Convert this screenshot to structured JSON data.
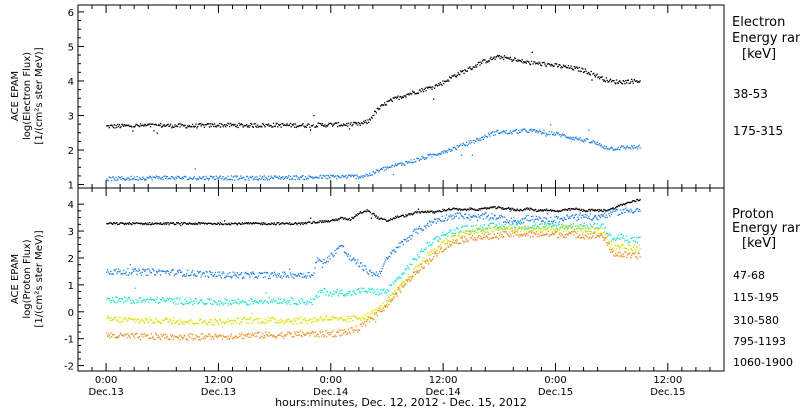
{
  "chart_data": [
    {
      "type": "scatter",
      "panel": "electron",
      "ylabel_lines": [
        "ACE EPAM",
        "log(Electron Flux)",
        "[1/(cm²s ster MeV)]"
      ],
      "ylim": [
        0.9,
        6.2
      ],
      "yticks": [
        1,
        2,
        3,
        4,
        5,
        6
      ],
      "ytick_labels": [
        "1",
        "2",
        "3",
        "4",
        "5",
        "6"
      ],
      "legend_title": [
        "Electron",
        "Energy ranges",
        "[keV]"
      ],
      "legend_placement": "right",
      "series": [
        {
          "name": "38-53",
          "color": "#000000",
          "x": [
            -24,
            -18,
            -12,
            -6,
            0,
            6,
            12,
            18,
            24,
            30,
            32,
            33,
            34,
            36,
            38,
            40,
            42,
            44,
            46,
            48,
            50,
            52,
            54,
            56,
            58,
            60,
            62,
            64,
            66,
            68,
            70,
            72,
            74,
            76,
            78,
            80,
            82,
            84,
            86,
            88,
            90
          ],
          "y": [
            2.7,
            2.72,
            2.73,
            2.71,
            2.74,
            2.73,
            2.74,
            2.73,
            2.75,
            2.76,
            2.85,
            3.05,
            3.2,
            3.4,
            3.52,
            3.62,
            3.7,
            3.78,
            3.86,
            3.98,
            4.15,
            4.28,
            4.4,
            4.55,
            4.65,
            4.72,
            4.66,
            4.6,
            4.55,
            4.52,
            4.5,
            4.46,
            4.42,
            4.38,
            4.32,
            4.22,
            4.08,
            4.0,
            3.99,
            4.01,
            4.02
          ]
        },
        {
          "name": "175-315",
          "color": "#2080e0",
          "x": [
            -24,
            -18,
            -12,
            -6,
            0,
            6,
            12,
            18,
            24,
            30,
            32,
            33,
            34,
            36,
            38,
            40,
            42,
            44,
            46,
            48,
            50,
            52,
            54,
            56,
            58,
            60,
            62,
            64,
            66,
            68,
            70,
            72,
            74,
            76,
            78,
            80,
            82,
            84,
            86,
            88,
            90
          ],
          "y": [
            1.18,
            1.2,
            1.22,
            1.2,
            1.22,
            1.2,
            1.22,
            1.22,
            1.24,
            1.25,
            1.3,
            1.35,
            1.42,
            1.5,
            1.58,
            1.65,
            1.72,
            1.8,
            1.88,
            1.98,
            2.05,
            2.15,
            2.25,
            2.35,
            2.48,
            2.55,
            2.52,
            2.56,
            2.58,
            2.55,
            2.52,
            2.48,
            2.42,
            2.36,
            2.3,
            2.24,
            2.12,
            2.06,
            2.08,
            2.1,
            2.1
          ]
        }
      ]
    },
    {
      "type": "scatter",
      "panel": "proton",
      "ylabel_lines": [
        "ACE EPAM",
        "log(Proton Flux)",
        "[1/(cm²s ster MeV)]"
      ],
      "ylim": [
        -2.2,
        4.6
      ],
      "yticks": [
        -2,
        -1,
        0,
        1,
        2,
        3,
        4
      ],
      "ytick_labels": [
        "-2",
        "-1",
        "0",
        "1",
        "2",
        "3",
        "4"
      ],
      "legend_title": [
        "Proton",
        "Energy ranges",
        "[keV]"
      ],
      "legend_placement": "right",
      "series": [
        {
          "name": "47-68",
          "color": "#000000",
          "x": [
            -24,
            -18,
            -12,
            -6,
            0,
            6,
            12,
            18,
            20,
            24,
            26,
            28,
            30,
            32,
            34,
            36,
            38,
            40,
            42,
            44,
            46,
            48,
            50,
            52,
            54,
            56,
            58,
            60,
            62,
            64,
            66,
            68,
            70,
            72,
            74,
            76,
            78,
            80,
            82,
            84,
            86,
            88,
            90
          ],
          "y": [
            3.3,
            3.3,
            3.3,
            3.3,
            3.3,
            3.3,
            3.3,
            3.3,
            3.35,
            3.4,
            3.5,
            3.45,
            3.7,
            3.8,
            3.5,
            3.4,
            3.55,
            3.6,
            3.7,
            3.75,
            3.72,
            3.8,
            3.85,
            3.8,
            3.85,
            3.82,
            3.9,
            3.88,
            3.85,
            3.8,
            3.85,
            3.78,
            3.82,
            3.75,
            3.8,
            3.85,
            3.78,
            3.8,
            3.78,
            3.85,
            4.0,
            4.1,
            4.2
          ]
        },
        {
          "name": "115-195",
          "color": "#2080e0",
          "x": [
            -24,
            -18,
            -12,
            -6,
            0,
            6,
            12,
            18,
            20,
            21,
            22,
            24,
            26,
            28,
            30,
            32,
            34,
            36,
            38,
            40,
            42,
            44,
            46,
            48,
            50,
            52,
            54,
            56,
            58,
            60,
            62,
            64,
            66,
            68,
            70,
            72,
            74,
            76,
            78,
            80,
            82,
            84,
            86,
            88,
            90
          ],
          "y": [
            1.52,
            1.5,
            1.5,
            1.45,
            1.4,
            1.38,
            1.38,
            1.4,
            1.4,
            2.0,
            1.8,
            2.1,
            2.5,
            2.0,
            1.8,
            1.5,
            1.4,
            2.0,
            2.4,
            2.7,
            3.0,
            3.2,
            3.4,
            3.5,
            3.6,
            3.6,
            3.5,
            3.55,
            3.6,
            3.5,
            3.4,
            3.4,
            3.5,
            3.45,
            3.4,
            3.45,
            3.5,
            3.55,
            3.6,
            3.5,
            3.6,
            3.7,
            3.75,
            3.8,
            3.82
          ]
        },
        {
          "name": "310-580",
          "color": "#20e0d0",
          "x": [
            -24,
            -18,
            -12,
            -6,
            0,
            6,
            12,
            18,
            20,
            22,
            24,
            26,
            28,
            30,
            32,
            34,
            36,
            38,
            40,
            42,
            44,
            46,
            48,
            50,
            52,
            54,
            56,
            58,
            60,
            62,
            64,
            66,
            68,
            70,
            72,
            74,
            76,
            78,
            80,
            82,
            84,
            86,
            88,
            90
          ],
          "y": [
            0.45,
            0.45,
            0.45,
            0.4,
            0.38,
            0.4,
            0.45,
            0.4,
            0.4,
            0.8,
            0.7,
            0.75,
            0.7,
            0.8,
            0.8,
            0.75,
            0.8,
            1.2,
            1.6,
            2.0,
            2.4,
            2.7,
            2.9,
            3.0,
            3.1,
            3.1,
            3.15,
            3.2,
            3.2,
            3.2,
            3.22,
            3.2,
            3.2,
            3.2,
            3.2,
            3.2,
            3.2,
            3.2,
            3.2,
            3.2,
            2.7,
            2.8,
            2.7,
            2.7
          ]
        },
        {
          "name": "795-1193",
          "color": "#d8e000",
          "x": [
            -24,
            -18,
            -12,
            -6,
            0,
            6,
            12,
            18,
            20,
            22,
            24,
            26,
            28,
            30,
            32,
            34,
            36,
            38,
            40,
            42,
            44,
            46,
            48,
            50,
            52,
            54,
            56,
            58,
            60,
            62,
            64,
            66,
            68,
            70,
            72,
            74,
            76,
            78,
            80,
            82,
            84,
            86,
            88,
            90
          ],
          "y": [
            -0.25,
            -0.3,
            -0.3,
            -0.35,
            -0.35,
            -0.3,
            -0.3,
            -0.3,
            -0.3,
            -0.2,
            -0.25,
            -0.3,
            -0.25,
            -0.2,
            -0.1,
            0.1,
            0.4,
            0.8,
            1.2,
            1.6,
            2.0,
            2.3,
            2.6,
            2.8,
            2.9,
            3.0,
            3.05,
            3.05,
            3.1,
            3.1,
            3.1,
            3.1,
            3.1,
            3.1,
            3.1,
            3.1,
            3.1,
            3.1,
            3.05,
            3.05,
            2.4,
            2.45,
            2.4,
            2.4
          ]
        },
        {
          "name": "1060-1900",
          "color": "#f08c1e",
          "x": [
            -24,
            -18,
            -12,
            -6,
            0,
            6,
            12,
            18,
            20,
            22,
            24,
            26,
            28,
            30,
            32,
            34,
            36,
            38,
            40,
            42,
            44,
            46,
            48,
            50,
            52,
            54,
            56,
            58,
            60,
            62,
            64,
            66,
            68,
            70,
            72,
            74,
            76,
            78,
            80,
            82,
            84,
            86,
            88,
            90
          ],
          "y": [
            -0.85,
            -0.9,
            -0.9,
            -0.9,
            -0.9,
            -0.85,
            -0.85,
            -0.8,
            -0.8,
            -0.8,
            -0.8,
            -0.75,
            -0.7,
            -0.6,
            -0.3,
            0.0,
            0.3,
            0.7,
            1.1,
            1.5,
            1.8,
            2.1,
            2.4,
            2.6,
            2.7,
            2.8,
            2.8,
            2.8,
            2.85,
            2.9,
            2.9,
            2.9,
            2.9,
            2.9,
            2.9,
            2.9,
            2.9,
            2.85,
            2.85,
            2.85,
            2.2,
            2.15,
            2.1,
            2.1
          ]
        }
      ]
    }
  ],
  "xaxis": {
    "xlim": [
      -30,
      108
    ],
    "ticks": [
      -24,
      0,
      24,
      48,
      72,
      96
    ],
    "minor_ticks": [
      -27,
      -21,
      -18,
      -15,
      -9,
      -6,
      -3,
      3,
      6,
      9,
      15,
      18,
      21,
      27,
      30,
      33,
      39,
      42,
      45,
      51,
      54,
      57,
      63,
      66,
      69,
      75,
      78,
      81,
      87,
      90,
      93,
      99,
      102,
      105
    ],
    "tick_time_labels": [
      "0:00",
      "12:00",
      "0:00",
      "12:00",
      "0:00",
      "12:00"
    ],
    "tick_date_labels": [
      "Dec.13",
      "Dec.13",
      "Dec.14",
      "Dec.14",
      "Dec.15",
      "Dec.15"
    ],
    "label": "hours:minutes, Dec. 12, 2012 - Dec. 15, 2012"
  }
}
